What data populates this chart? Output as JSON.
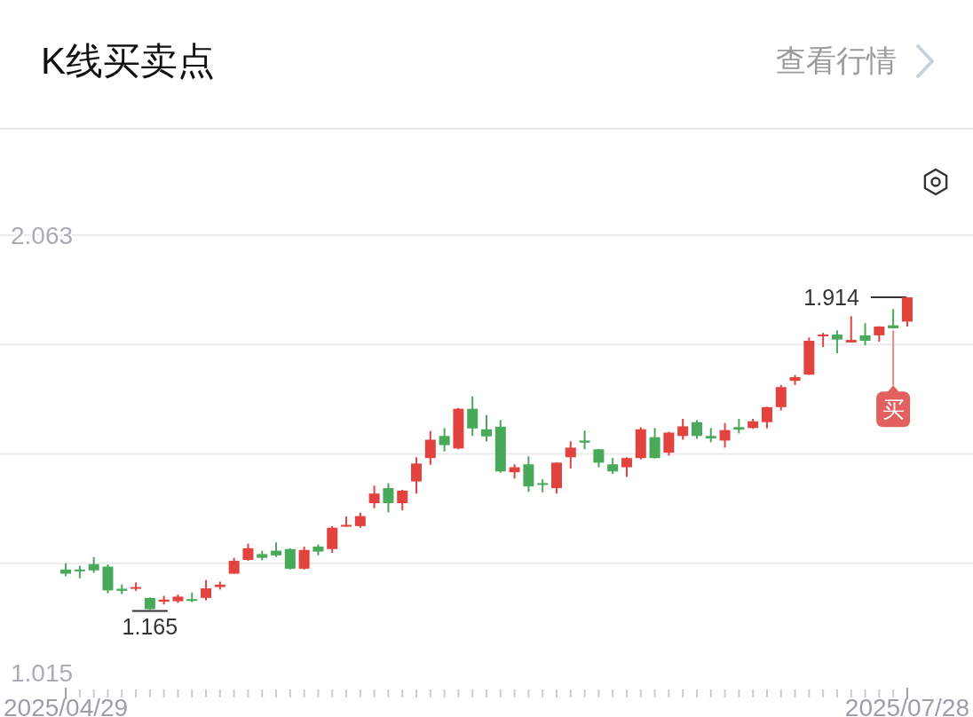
{
  "chart_data": {
    "type": "candlestick",
    "title": "K线买卖点",
    "categories": [
      "2025/04/29",
      null,
      null,
      null,
      null,
      null,
      null,
      null,
      null,
      null,
      null,
      null,
      null,
      null,
      null,
      null,
      null,
      null,
      null,
      null,
      null,
      null,
      null,
      null,
      null,
      null,
      null,
      null,
      null,
      null,
      null,
      null,
      null,
      null,
      null,
      null,
      null,
      null,
      null,
      null,
      null,
      null,
      null,
      null,
      null,
      null,
      null,
      null,
      null,
      null,
      null,
      null,
      null,
      null,
      null,
      null,
      null,
      null,
      null,
      null,
      "2025/07/28"
    ],
    "ohlc": [
      [
        1.262,
        1.277,
        1.246,
        1.252
      ],
      [
        1.262,
        1.271,
        1.241,
        1.258
      ],
      [
        1.275,
        1.292,
        1.254,
        1.26
      ],
      [
        1.269,
        1.274,
        1.205,
        1.212
      ],
      [
        1.216,
        1.226,
        1.203,
        1.211
      ],
      [
        1.216,
        1.231,
        1.211,
        1.22
      ],
      [
        1.194,
        1.195,
        1.165,
        1.167
      ],
      [
        1.185,
        1.199,
        1.178,
        1.19
      ],
      [
        1.186,
        1.202,
        1.182,
        1.197
      ],
      [
        1.191,
        1.207,
        1.184,
        1.187
      ],
      [
        1.194,
        1.237,
        1.188,
        1.217
      ],
      [
        1.22,
        1.233,
        1.214,
        1.226
      ],
      [
        1.252,
        1.29,
        1.252,
        1.283
      ],
      [
        1.285,
        1.324,
        1.283,
        1.313
      ],
      [
        1.299,
        1.307,
        1.284,
        1.29
      ],
      [
        1.307,
        1.327,
        1.292,
        1.296
      ],
      [
        1.311,
        1.313,
        1.262,
        1.264
      ],
      [
        1.264,
        1.317,
        1.262,
        1.309
      ],
      [
        1.317,
        1.322,
        1.296,
        1.305
      ],
      [
        1.311,
        1.366,
        1.302,
        1.362
      ],
      [
        1.365,
        1.389,
        1.364,
        1.369
      ],
      [
        1.366,
        1.398,
        1.362,
        1.39
      ],
      [
        1.421,
        1.463,
        1.409,
        1.444
      ],
      [
        1.457,
        1.469,
        1.399,
        1.421
      ],
      [
        1.421,
        1.453,
        1.404,
        1.451
      ],
      [
        1.473,
        1.531,
        1.444,
        1.516
      ],
      [
        1.529,
        1.594,
        1.513,
        1.573
      ],
      [
        1.582,
        1.601,
        1.545,
        1.56
      ],
      [
        1.552,
        1.649,
        1.55,
        1.647
      ],
      [
        1.647,
        1.677,
        1.582,
        1.6
      ],
      [
        1.598,
        1.632,
        1.569,
        1.581
      ],
      [
        1.604,
        1.62,
        1.494,
        1.497
      ],
      [
        1.495,
        1.514,
        1.48,
        1.507
      ],
      [
        1.514,
        1.533,
        1.448,
        1.461
      ],
      [
        1.469,
        1.478,
        1.447,
        1.465
      ],
      [
        1.457,
        1.519,
        1.444,
        1.518
      ],
      [
        1.531,
        1.569,
        1.504,
        1.554
      ],
      [
        1.571,
        1.595,
        1.55,
        1.566
      ],
      [
        1.55,
        1.551,
        1.507,
        1.518
      ],
      [
        1.514,
        1.529,
        1.491,
        1.497
      ],
      [
        1.507,
        1.531,
        1.484,
        1.529
      ],
      [
        1.529,
        1.603,
        1.526,
        1.598
      ],
      [
        1.579,
        1.601,
        1.528,
        1.529
      ],
      [
        1.542,
        1.592,
        1.535,
        1.59
      ],
      [
        1.582,
        1.623,
        1.573,
        1.605
      ],
      [
        1.615,
        1.62,
        1.575,
        1.582
      ],
      [
        1.582,
        1.601,
        1.567,
        1.576
      ],
      [
        1.571,
        1.613,
        1.554,
        1.596
      ],
      [
        1.603,
        1.623,
        1.588,
        1.597
      ],
      [
        1.601,
        1.623,
        1.599,
        1.617
      ],
      [
        1.615,
        1.652,
        1.6,
        1.651
      ],
      [
        1.651,
        1.704,
        1.643,
        1.699
      ],
      [
        1.714,
        1.728,
        1.704,
        1.723
      ],
      [
        1.729,
        1.818,
        1.728,
        1.81
      ],
      [
        1.822,
        1.829,
        1.795,
        1.825
      ],
      [
        1.825,
        1.835,
        1.78,
        1.813
      ],
      [
        1.806,
        1.869,
        1.806,
        1.812
      ],
      [
        1.823,
        1.852,
        1.799,
        1.81
      ],
      [
        1.823,
        1.845,
        1.808,
        1.844
      ],
      [
        1.847,
        1.886,
        1.839,
        1.84
      ],
      [
        1.856,
        1.914,
        1.844,
        1.914
      ]
    ],
    "colors": [
      "#48a95a",
      "#48a95a",
      "#48a95a",
      "#48a95a",
      "#48a95a",
      "#e2433f",
      "#48a95a",
      "#e2433f",
      "#e2433f",
      "#48a95a",
      "#e2433f",
      "#e2433f",
      "#e2433f",
      "#e2433f",
      "#48a95a",
      "#48a95a",
      "#48a95a",
      "#e2433f",
      "#48a95a",
      "#e2433f",
      "#e2433f",
      "#e2433f",
      "#e2433f",
      "#48a95a",
      "#e2433f",
      "#e2433f",
      "#e2433f",
      "#48a95a",
      "#e2433f",
      "#48a95a",
      "#48a95a",
      "#48a95a",
      "#e2433f",
      "#48a95a",
      "#48a95a",
      "#e2433f",
      "#e2433f",
      "#48a95a",
      "#48a95a",
      "#48a95a",
      "#e2433f",
      "#e2433f",
      "#48a95a",
      "#e2433f",
      "#e2433f",
      "#48a95a",
      "#48a95a",
      "#e2433f",
      "#48a95a",
      "#e2433f",
      "#e2433f",
      "#e2433f",
      "#e2433f",
      "#e2433f",
      "#e2433f",
      "#48a95a",
      "#e2433f",
      "#48a95a",
      "#e2433f",
      "#48a95a",
      "#e2433f"
    ],
    "ylim": [
      1.015,
      2.063
    ],
    "yticks": [
      2.063,
      {
        "value": 1.801,
        "label": null
      },
      {
        "value": 1.539,
        "label": null
      },
      {
        "value": 1.277,
        "label": null
      },
      1.015
    ],
    "grid": "y",
    "annotations": [
      {
        "text": "1.165",
        "y": 1.165
      },
      {
        "text": "1.914",
        "x": "2025/07/28",
        "y": 1.914
      },
      {
        "text": "买",
        "y": 1.839
      },
      "查看行情"
    ]
  }
}
